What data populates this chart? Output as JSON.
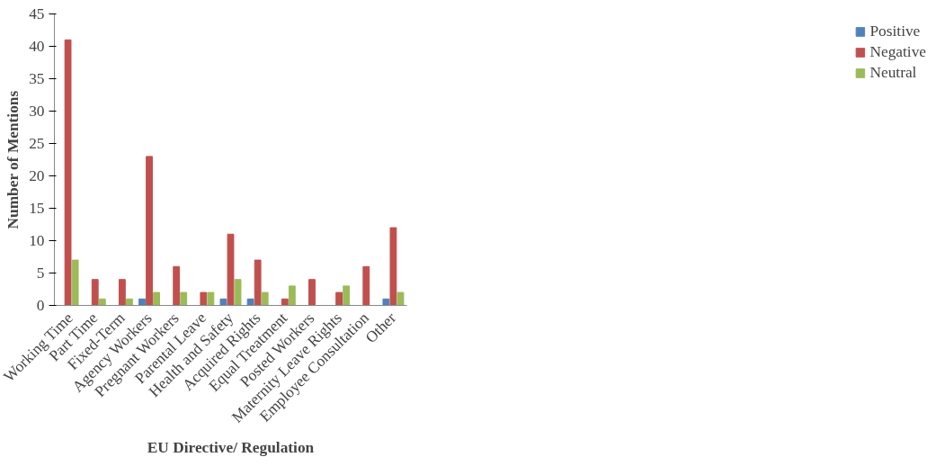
{
  "chart_data": {
    "type": "bar",
    "xlabel": "EU Directive/ Regulation",
    "ylabel": "Number of Mentions",
    "categories": [
      "Working Time",
      "Part Time",
      "Fixed-Term",
      "Agency Workers",
      "Pregnant Workers",
      "Parental Leave",
      "Health and Safety",
      "Acquired Rights",
      "Equal Treatment",
      "Posted Workers",
      "Maternity Leave Rights",
      "Employee Consultation",
      "Other"
    ],
    "series": [
      {
        "name": "Positive",
        "color": "#4f81bd",
        "values": [
          0,
          0,
          0,
          1,
          0,
          0,
          1,
          1,
          0,
          0,
          0,
          0,
          1
        ]
      },
      {
        "name": "Negative",
        "color": "#c0504d",
        "values": [
          41,
          4,
          4,
          23,
          6,
          2,
          11,
          7,
          1,
          4,
          2,
          6,
          12
        ]
      },
      {
        "name": "Neutral",
        "color": "#9bbb59",
        "values": [
          7,
          1,
          1,
          2,
          2,
          2,
          4,
          2,
          3,
          0,
          3,
          0,
          2
        ]
      }
    ],
    "ylim": [
      0,
      45
    ],
    "yticks": [
      0,
      5,
      10,
      15,
      20,
      25,
      30,
      35,
      40,
      45
    ],
    "grid": false,
    "legend": "right"
  }
}
